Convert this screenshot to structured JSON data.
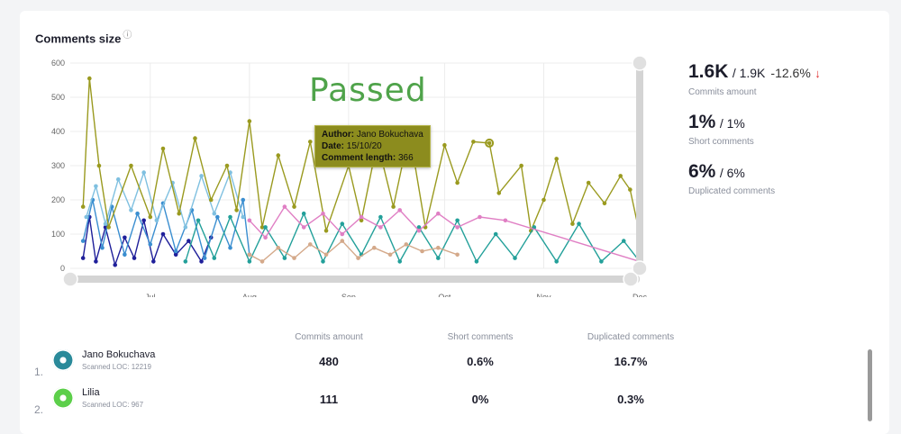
{
  "card": {
    "title": "Comments size",
    "info_icon": "info-icon"
  },
  "annotation": "Passed",
  "tooltip": {
    "author_label": "Author:",
    "author": "Jano Bokuchava",
    "date_label": "Date:",
    "date": "15/10/20",
    "length_label": "Comment length:",
    "length": "366"
  },
  "stats": [
    {
      "value": "1.6K",
      "compare": "/ 1.9K",
      "change": "-12.6%",
      "trend": "down",
      "label": "Commits amount"
    },
    {
      "value": "1%",
      "compare": "/ 1%",
      "label": "Short comments"
    },
    {
      "value": "6%",
      "compare": "/ 6%",
      "label": "Duplicated comments"
    }
  ],
  "table": {
    "headers": [
      "Commits amount",
      "Short comments",
      "Duplicated comments"
    ],
    "rows": [
      {
        "rank": "1.",
        "name": "Jano Bokuchava",
        "loc": "Scanned LOC: 12219",
        "commits": "480",
        "short": "0.6%",
        "duplicated": "16.7%",
        "avatar_color": "#2a8a9a"
      },
      {
        "rank": "2.",
        "name": "Lilia",
        "loc": "Scanned LOC: 967",
        "commits": "111",
        "short": "0%",
        "duplicated": "0.3%",
        "avatar_color": "#5ccf4a"
      }
    ]
  },
  "chart_data": {
    "type": "line",
    "title": "Comments size",
    "ylim": [
      0,
      600
    ],
    "yticks": [
      0,
      100,
      200,
      300,
      400,
      500,
      600
    ],
    "xlim": [
      "2020-06-06",
      "2020-12-01"
    ],
    "xticks": [
      {
        "date": "2020-07-01",
        "label": "Jul"
      },
      {
        "date": "2020-08-01",
        "label": "Aug"
      },
      {
        "date": "2020-09-01",
        "label": "Sep"
      },
      {
        "date": "2020-10-01",
        "label": "Oct"
      },
      {
        "date": "2020-11-01",
        "label": "Nov"
      },
      {
        "date": "2020-12-01",
        "label": "Dec"
      }
    ],
    "grid": true,
    "series": [
      {
        "color": "#1f1f9a",
        "points": [
          [
            "2020-06-10",
            30
          ],
          [
            "2020-06-12",
            150
          ],
          [
            "2020-06-14",
            20
          ],
          [
            "2020-06-17",
            120
          ],
          [
            "2020-06-20",
            10
          ],
          [
            "2020-06-23",
            90
          ],
          [
            "2020-06-26",
            30
          ],
          [
            "2020-06-29",
            140
          ],
          [
            "2020-07-02",
            20
          ],
          [
            "2020-07-05",
            100
          ],
          [
            "2020-07-09",
            40
          ],
          [
            "2020-07-13",
            80
          ],
          [
            "2020-07-17",
            20
          ],
          [
            "2020-07-20",
            90
          ]
        ]
      },
      {
        "color": "#3a8ed0",
        "points": [
          [
            "2020-06-10",
            80
          ],
          [
            "2020-06-13",
            200
          ],
          [
            "2020-06-16",
            60
          ],
          [
            "2020-06-19",
            180
          ],
          [
            "2020-06-23",
            40
          ],
          [
            "2020-06-27",
            160
          ],
          [
            "2020-07-01",
            70
          ],
          [
            "2020-07-05",
            190
          ],
          [
            "2020-07-09",
            50
          ],
          [
            "2020-07-14",
            170
          ],
          [
            "2020-07-18",
            30
          ],
          [
            "2020-07-22",
            150
          ],
          [
            "2020-07-26",
            60
          ],
          [
            "2020-07-30",
            200
          ],
          [
            "2020-08-01",
            40
          ]
        ]
      },
      {
        "color": "#7fc0e0",
        "points": [
          [
            "2020-06-11",
            150
          ],
          [
            "2020-06-14",
            240
          ],
          [
            "2020-06-17",
            130
          ],
          [
            "2020-06-21",
            260
          ],
          [
            "2020-06-25",
            170
          ],
          [
            "2020-06-29",
            280
          ],
          [
            "2020-07-03",
            140
          ],
          [
            "2020-07-08",
            250
          ],
          [
            "2020-07-12",
            120
          ],
          [
            "2020-07-17",
            270
          ],
          [
            "2020-07-21",
            160
          ],
          [
            "2020-07-26",
            280
          ],
          [
            "2020-07-30",
            150
          ]
        ]
      },
      {
        "color": "#9a9a1f",
        "points": [
          [
            "2020-06-10",
            180
          ],
          [
            "2020-06-12",
            555
          ],
          [
            "2020-06-15",
            300
          ],
          [
            "2020-06-18",
            120
          ],
          [
            "2020-06-25",
            300
          ],
          [
            "2020-07-01",
            150
          ],
          [
            "2020-07-05",
            350
          ],
          [
            "2020-07-10",
            160
          ],
          [
            "2020-07-15",
            380
          ],
          [
            "2020-07-20",
            200
          ],
          [
            "2020-07-25",
            300
          ],
          [
            "2020-07-28",
            170
          ],
          [
            "2020-08-01",
            430
          ],
          [
            "2020-08-05",
            120
          ],
          [
            "2020-08-10",
            330
          ],
          [
            "2020-08-15",
            180
          ],
          [
            "2020-08-20",
            370
          ],
          [
            "2020-08-25",
            110
          ],
          [
            "2020-09-01",
            300
          ],
          [
            "2020-09-05",
            140
          ],
          [
            "2020-09-10",
            370
          ],
          [
            "2020-09-15",
            180
          ],
          [
            "2020-09-20",
            400
          ],
          [
            "2020-09-25",
            120
          ],
          [
            "2020-10-01",
            360
          ],
          [
            "2020-10-05",
            250
          ],
          [
            "2020-10-10",
            370
          ],
          [
            "2020-10-15",
            366
          ],
          [
            "2020-10-18",
            220
          ],
          [
            "2020-10-25",
            300
          ],
          [
            "2020-10-28",
            110
          ],
          [
            "2020-11-01",
            200
          ],
          [
            "2020-11-05",
            320
          ],
          [
            "2020-11-10",
            130
          ],
          [
            "2020-11-15",
            250
          ],
          [
            "2020-11-20",
            190
          ],
          [
            "2020-11-25",
            270
          ],
          [
            "2020-11-28",
            230
          ],
          [
            "2020-12-01",
            100
          ]
        ]
      },
      {
        "color": "#23a09a",
        "points": [
          [
            "2020-07-12",
            20
          ],
          [
            "2020-07-16",
            140
          ],
          [
            "2020-07-21",
            30
          ],
          [
            "2020-07-26",
            150
          ],
          [
            "2020-08-01",
            20
          ],
          [
            "2020-08-06",
            120
          ],
          [
            "2020-08-12",
            30
          ],
          [
            "2020-08-18",
            160
          ],
          [
            "2020-08-24",
            20
          ],
          [
            "2020-08-30",
            130
          ],
          [
            "2020-09-05",
            40
          ],
          [
            "2020-09-11",
            150
          ],
          [
            "2020-09-17",
            20
          ],
          [
            "2020-09-23",
            120
          ],
          [
            "2020-09-29",
            30
          ],
          [
            "2020-10-05",
            140
          ],
          [
            "2020-10-11",
            20
          ],
          [
            "2020-10-17",
            100
          ],
          [
            "2020-10-23",
            30
          ],
          [
            "2020-10-29",
            120
          ],
          [
            "2020-11-05",
            20
          ],
          [
            "2020-11-12",
            130
          ],
          [
            "2020-11-19",
            20
          ],
          [
            "2020-11-26",
            80
          ],
          [
            "2020-12-01",
            20
          ]
        ]
      },
      {
        "color": "#e07fc4",
        "points": [
          [
            "2020-08-01",
            140
          ],
          [
            "2020-08-06",
            90
          ],
          [
            "2020-08-12",
            180
          ],
          [
            "2020-08-18",
            120
          ],
          [
            "2020-08-24",
            160
          ],
          [
            "2020-08-30",
            100
          ],
          [
            "2020-09-05",
            150
          ],
          [
            "2020-09-11",
            120
          ],
          [
            "2020-09-17",
            170
          ],
          [
            "2020-09-23",
            110
          ],
          [
            "2020-09-29",
            160
          ],
          [
            "2020-10-05",
            120
          ],
          [
            "2020-10-12",
            150
          ],
          [
            "2020-10-20",
            140
          ],
          [
            "2020-12-01",
            20
          ]
        ]
      },
      {
        "color": "#d4a98a",
        "points": [
          [
            "2020-08-01",
            40
          ],
          [
            "2020-08-05",
            20
          ],
          [
            "2020-08-10",
            60
          ],
          [
            "2020-08-15",
            30
          ],
          [
            "2020-08-20",
            70
          ],
          [
            "2020-08-25",
            40
          ],
          [
            "2020-08-30",
            80
          ],
          [
            "2020-09-04",
            30
          ],
          [
            "2020-09-09",
            60
          ],
          [
            "2020-09-14",
            40
          ],
          [
            "2020-09-19",
            70
          ],
          [
            "2020-09-24",
            50
          ],
          [
            "2020-09-29",
            60
          ],
          [
            "2020-10-05",
            40
          ]
        ]
      }
    ],
    "highlight": {
      "date": "2020-10-15",
      "value": 366
    }
  }
}
